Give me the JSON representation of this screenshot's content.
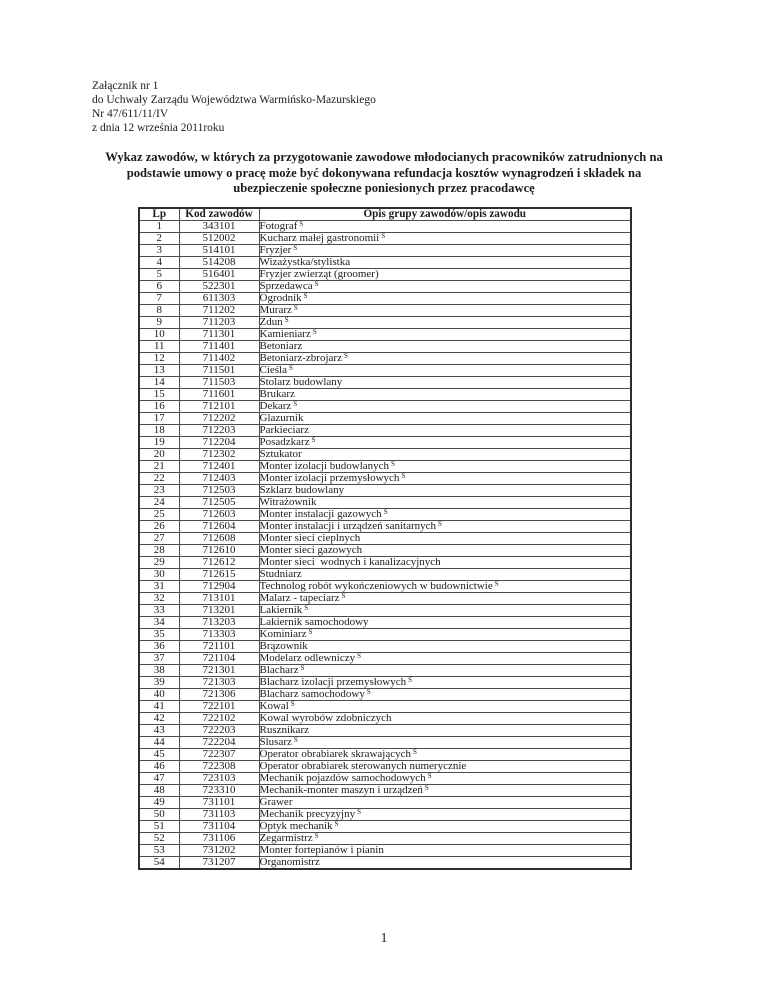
{
  "header": {
    "lines": [
      "Załącznik nr 1",
      "do Uchwały Zarządu Województwa Warmińsko-Mazurskiego",
      "Nr 47/611/11/IV",
      "z dnia 12 września 2011roku"
    ]
  },
  "title": {
    "lines": [
      "Wykaz zawodów, w których za przygotowanie zawodowe młodocianych pracowników zatrudnionych na",
      "podstawie umowy o pracę może być dokonywana refundacja kosztów wynagrodzeń i składek na",
      "ubezpieczenie społeczne poniesionych przez pracodawcę"
    ]
  },
  "table": {
    "columns": [
      "Lp",
      "Kod zawodów",
      "Opis grupy zawodów/opis zawodu"
    ],
    "superscript_marker": "S",
    "rows": [
      {
        "lp": "1",
        "kod": "343101",
        "opis": "Fotograf",
        "s": true
      },
      {
        "lp": "2",
        "kod": "512002",
        "opis": "Kucharz małej gastronomii",
        "s": true
      },
      {
        "lp": "3",
        "kod": "514101",
        "opis": "Fryzjer",
        "s": true
      },
      {
        "lp": "4",
        "kod": "514208",
        "opis": "Wizażystka/stylistka",
        "s": false
      },
      {
        "lp": "5",
        "kod": "516401",
        "opis": "Fryzjer zwierząt (groomer)",
        "s": false
      },
      {
        "lp": "6",
        "kod": "522301",
        "opis": "Sprzedawca",
        "s": true
      },
      {
        "lp": "7",
        "kod": "611303",
        "opis": "Ogrodnik",
        "s": true
      },
      {
        "lp": "8",
        "kod": "711202",
        "opis": "Murarz",
        "s": true
      },
      {
        "lp": "9",
        "kod": "711203",
        "opis": "Zdun",
        "s": true
      },
      {
        "lp": "10",
        "kod": "711301",
        "opis": "Kamieniarz",
        "s": true
      },
      {
        "lp": "11",
        "kod": "711401",
        "opis": "Betoniarz",
        "s": false
      },
      {
        "lp": "12",
        "kod": "711402",
        "opis": "Betoniarz-zbrojarz",
        "s": true
      },
      {
        "lp": "13",
        "kod": "711501",
        "opis": "Cieśla",
        "s": true
      },
      {
        "lp": "14",
        "kod": "711503",
        "opis": "Stolarz budowlany",
        "s": false
      },
      {
        "lp": "15",
        "kod": "711601",
        "opis": "Brukarz",
        "s": false
      },
      {
        "lp": "16",
        "kod": "712101",
        "opis": "Dekarz",
        "s": true
      },
      {
        "lp": "17",
        "kod": "712202",
        "opis": "Glazurnik",
        "s": false
      },
      {
        "lp": "18",
        "kod": "712203",
        "opis": "Parkieciarz",
        "s": false
      },
      {
        "lp": "19",
        "kod": "712204",
        "opis": "Posadzkarz",
        "s": true
      },
      {
        "lp": "20",
        "kod": "712302",
        "opis": "Sztukator",
        "s": false
      },
      {
        "lp": "21",
        "kod": "712401",
        "opis": "Monter izolacji budowlanych",
        "s": true
      },
      {
        "lp": "22",
        "kod": "712403",
        "opis": "Monter izolacji przemysłowych",
        "s": true
      },
      {
        "lp": "23",
        "kod": "712503",
        "opis": "Szklarz budowlany",
        "s": false
      },
      {
        "lp": "24",
        "kod": "712505",
        "opis": "Witrażownik",
        "s": false
      },
      {
        "lp": "25",
        "kod": "712603",
        "opis": "Monter instalacji gazowych",
        "s": true
      },
      {
        "lp": "26",
        "kod": "712604",
        "opis": "Monter instalacji i urządzeń sanitarnych",
        "s": true
      },
      {
        "lp": "27",
        "kod": "712608",
        "opis": "Monter sieci cieplnych",
        "s": false
      },
      {
        "lp": "28",
        "kod": "712610",
        "opis": "Monter sieci gazowych",
        "s": false
      },
      {
        "lp": "29",
        "kod": "712612",
        "opis": "Monter sieci  wodnych i kanalizacyjnych",
        "s": false
      },
      {
        "lp": "30",
        "kod": "712615",
        "opis": "Studniarz",
        "s": false
      },
      {
        "lp": "31",
        "kod": "712904",
        "opis": "Technolog robót wykończeniowych w budownictwie",
        "s": true
      },
      {
        "lp": "32",
        "kod": "713101",
        "opis": "Malarz - tapeciarz",
        "s": true
      },
      {
        "lp": "33",
        "kod": "713201",
        "opis": "Lakiernik",
        "s": true
      },
      {
        "lp": "34",
        "kod": "713203",
        "opis": "Lakiernik samochodowy",
        "s": false
      },
      {
        "lp": "35",
        "kod": "713303",
        "opis": "Kominiarz",
        "s": true
      },
      {
        "lp": "36",
        "kod": "721101",
        "opis": "Brązownik",
        "s": false
      },
      {
        "lp": "37",
        "kod": "721104",
        "opis": "Modelarz odlewniczy",
        "s": true
      },
      {
        "lp": "38",
        "kod": "721301",
        "opis": "Blacharz",
        "s": true
      },
      {
        "lp": "39",
        "kod": "721303",
        "opis": "Blacharz izolacji przemysłowych",
        "s": true
      },
      {
        "lp": "40",
        "kod": "721306",
        "opis": "Blacharz samochodowy",
        "s": true
      },
      {
        "lp": "41",
        "kod": "722101",
        "opis": "Kowal",
        "s": true
      },
      {
        "lp": "42",
        "kod": "722102",
        "opis": "Kowal wyrobów zdobniczych",
        "s": false
      },
      {
        "lp": "43",
        "kod": "722203",
        "opis": "Rusznikarz",
        "s": false
      },
      {
        "lp": "44",
        "kod": "722204",
        "opis": "Ślusarz",
        "s": true
      },
      {
        "lp": "45",
        "kod": "722307",
        "opis": "Operator obrabiarek skrawających",
        "s": true
      },
      {
        "lp": "46",
        "kod": "722308",
        "opis": "Operator obrabiarek sterowanych numerycznie",
        "s": false
      },
      {
        "lp": "47",
        "kod": "723103",
        "opis": "Mechanik pojazdów samochodowych",
        "s": true
      },
      {
        "lp": "48",
        "kod": "723310",
        "opis": "Mechanik-monter maszyn i urządzeń",
        "s": true
      },
      {
        "lp": "49",
        "kod": "731101",
        "opis": "Grawer",
        "s": false
      },
      {
        "lp": "50",
        "kod": "731103",
        "opis": "Mechanik precyzyjny",
        "s": true
      },
      {
        "lp": "51",
        "kod": "731104",
        "opis": "Optyk mechanik",
        "s": true
      },
      {
        "lp": "52",
        "kod": "731106",
        "opis": "Zegarmistrz",
        "s": true
      },
      {
        "lp": "53",
        "kod": "731202",
        "opis": "Monter fortepianów i pianin",
        "s": false
      },
      {
        "lp": "54",
        "kod": "731207",
        "opis": "Organomistrz",
        "s": false
      }
    ]
  },
  "footer": {
    "page_number": "1"
  }
}
